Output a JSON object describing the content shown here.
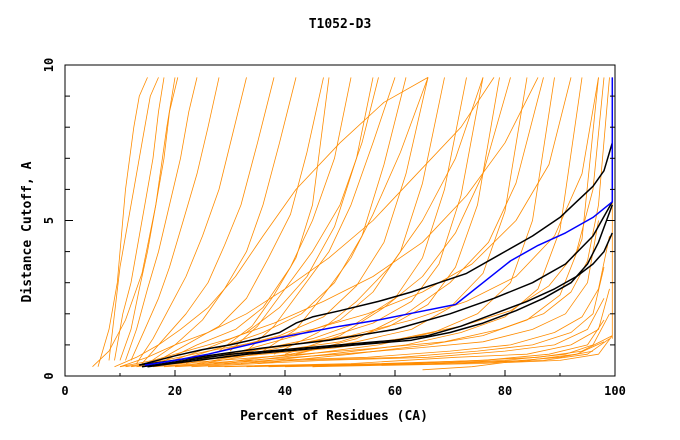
{
  "chart_data": {
    "type": "line",
    "title": "T1052-D3",
    "xlabel": "Percent of Residues (CA)",
    "ylabel": "Distance Cutoff, A",
    "xlim": [
      0,
      100
    ],
    "ylim": [
      0,
      10
    ],
    "x_ticks": [
      0,
      20,
      40,
      60,
      80,
      100
    ],
    "y_ticks": [
      0,
      5,
      10
    ],
    "grid": false,
    "legend": "none",
    "colors": {
      "orange": "#ff8c00",
      "black": "#000000",
      "blue": "#0000ff"
    },
    "series": [
      {
        "color": "orange",
        "x": [
          6,
          8,
          9.5,
          10,
          11,
          12.5,
          13.5,
          15
        ],
        "y": [
          0.3,
          1.5,
          3.0,
          4.0,
          6.0,
          8.0,
          9.0,
          9.6
        ]
      },
      {
        "color": "orange",
        "x": [
          8,
          9,
          10,
          11,
          12.5,
          14,
          15.5,
          17
        ],
        "y": [
          0.5,
          2.0,
          3.5,
          4.5,
          6.0,
          7.5,
          9.0,
          9.6
        ]
      },
      {
        "color": "orange",
        "x": [
          9,
          10.5,
          12,
          13,
          14.5,
          16,
          17,
          18
        ],
        "y": [
          0.5,
          2.0,
          3.0,
          4.0,
          5.5,
          7.0,
          8.5,
          9.6
        ]
      },
      {
        "color": "orange",
        "x": [
          10,
          12,
          13.5,
          15,
          16.5,
          18,
          19,
          20.5
        ],
        "y": [
          0.5,
          1.5,
          2.8,
          4.0,
          5.5,
          7.0,
          8.5,
          9.6
        ]
      },
      {
        "color": "orange",
        "x": [
          11,
          13,
          15,
          17,
          19,
          21,
          22.5,
          24
        ],
        "y": [
          0.5,
          1.5,
          2.8,
          4.0,
          5.5,
          7.0,
          8.5,
          9.6
        ]
      },
      {
        "color": "orange",
        "x": [
          12,
          14.5,
          17,
          19,
          21.5,
          24,
          26,
          28
        ],
        "y": [
          0.5,
          1.5,
          2.5,
          3.5,
          5.0,
          6.5,
          8.0,
          9.6
        ]
      },
      {
        "color": "orange",
        "x": [
          13,
          16,
          19,
          22,
          25,
          28,
          30.5,
          33
        ],
        "y": [
          0.4,
          1.2,
          2.2,
          3.2,
          4.5,
          6.0,
          7.8,
          9.6
        ]
      },
      {
        "color": "orange",
        "x": [
          14,
          18,
          22,
          26,
          29,
          32,
          35,
          38
        ],
        "y": [
          0.4,
          1.2,
          2.0,
          3.0,
          4.2,
          5.5,
          7.5,
          9.6
        ]
      },
      {
        "color": "orange",
        "x": [
          15,
          20,
          25,
          29,
          33,
          36,
          39,
          42
        ],
        "y": [
          0.4,
          1.0,
          1.8,
          2.8,
          4.0,
          5.5,
          7.5,
          9.6
        ]
      },
      {
        "color": "orange",
        "x": [
          16,
          22,
          28,
          33,
          37,
          41,
          44,
          47
        ],
        "y": [
          0.4,
          1.0,
          1.6,
          2.5,
          3.8,
          5.2,
          7.2,
          9.6
        ]
      },
      {
        "color": "orange",
        "x": [
          17,
          24,
          31,
          36,
          41,
          45,
          49,
          52
        ],
        "y": [
          0.4,
          1.0,
          1.5,
          2.2,
          3.5,
          5.0,
          7.0,
          9.6
        ]
      },
      {
        "color": "orange",
        "x": [
          18,
          26,
          33,
          39,
          44,
          49,
          53,
          56
        ],
        "y": [
          0.4,
          0.9,
          1.4,
          2.2,
          3.2,
          4.8,
          7.0,
          9.6
        ]
      },
      {
        "color": "orange",
        "x": [
          19,
          28,
          36,
          43,
          49,
          54,
          58,
          62
        ],
        "y": [
          0.4,
          0.9,
          1.4,
          2.0,
          3.0,
          4.5,
          6.8,
          9.6
        ]
      },
      {
        "color": "orange",
        "x": [
          20,
          30,
          39,
          47,
          53,
          58,
          62,
          66
        ],
        "y": [
          0.4,
          0.9,
          1.3,
          1.9,
          2.9,
          4.3,
          6.5,
          9.6
        ]
      },
      {
        "color": "orange",
        "x": [
          21,
          32,
          42,
          50,
          56,
          61,
          65,
          69
        ],
        "y": [
          0.4,
          0.8,
          1.3,
          1.8,
          2.7,
          4.0,
          6.2,
          9.6
        ]
      },
      {
        "color": "orange",
        "x": [
          22,
          34,
          45,
          53,
          60,
          65,
          69,
          73
        ],
        "y": [
          0.4,
          0.8,
          1.2,
          1.7,
          2.5,
          3.8,
          6.0,
          9.6
        ]
      },
      {
        "color": "orange",
        "x": [
          24,
          36,
          47,
          56,
          63,
          68,
          72,
          76
        ],
        "y": [
          0.4,
          0.8,
          1.2,
          1.7,
          2.4,
          3.6,
          5.8,
          9.6
        ]
      },
      {
        "color": "orange",
        "x": [
          25,
          38,
          50,
          59,
          66,
          71,
          75,
          79
        ],
        "y": [
          0.4,
          0.8,
          1.1,
          1.6,
          2.3,
          3.5,
          5.5,
          9.6
        ]
      },
      {
        "color": "orange",
        "x": [
          27,
          41,
          53,
          63,
          70,
          76,
          80,
          84
        ],
        "y": [
          0.4,
          0.7,
          1.1,
          1.5,
          2.2,
          3.3,
          5.3,
          9.6
        ]
      },
      {
        "color": "orange",
        "x": [
          29,
          44,
          57,
          67,
          75,
          81,
          85,
          89
        ],
        "y": [
          0.4,
          0.7,
          1.0,
          1.4,
          2.0,
          3.0,
          5.0,
          9.6
        ]
      },
      {
        "color": "orange",
        "x": [
          32,
          48,
          62,
          72,
          80,
          86,
          90,
          94
        ],
        "y": [
          0.4,
          0.7,
          1.0,
          1.4,
          1.9,
          2.8,
          4.7,
          9.6
        ]
      },
      {
        "color": "orange",
        "x": [
          35,
          52,
          66,
          76,
          84,
          90,
          94,
          97
        ],
        "y": [
          0.4,
          0.7,
          1.0,
          1.3,
          1.8,
          2.6,
          4.4,
          9.6
        ]
      },
      {
        "color": "orange",
        "x": [
          5,
          8,
          11,
          14,
          16.5,
          18.5,
          20
        ],
        "y": [
          0.3,
          0.8,
          1.8,
          3.3,
          5.5,
          8.0,
          9.6
        ]
      },
      {
        "color": "orange",
        "x": [
          9,
          13,
          17,
          21,
          26,
          31,
          36,
          42,
          50,
          58,
          66
        ],
        "y": [
          0.3,
          0.6,
          1.0,
          1.5,
          2.2,
          3.2,
          4.5,
          6.0,
          7.5,
          8.8,
          9.6
        ]
      },
      {
        "color": "orange",
        "x": [
          10,
          15,
          20,
          26,
          33,
          40,
          48,
          56,
          64,
          72,
          78
        ],
        "y": [
          0.3,
          0.6,
          1.0,
          1.4,
          2.0,
          2.8,
          3.8,
          5.0,
          6.5,
          8.0,
          9.6
        ]
      },
      {
        "color": "orange",
        "x": [
          10,
          16,
          22,
          30,
          38,
          47,
          56,
          65,
          73,
          80,
          86
        ],
        "y": [
          0.3,
          0.5,
          0.8,
          1.2,
          1.7,
          2.4,
          3.2,
          4.3,
          5.8,
          7.5,
          9.6
        ]
      },
      {
        "color": "orange",
        "x": [
          11,
          18,
          26,
          35,
          45,
          55,
          65,
          74,
          82,
          88,
          92
        ],
        "y": [
          0.3,
          0.5,
          0.8,
          1.1,
          1.5,
          2.0,
          2.7,
          3.6,
          5.0,
          6.8,
          9.6
        ]
      },
      {
        "color": "orange",
        "x": [
          12,
          20,
          30,
          41,
          52,
          63,
          73,
          82,
          89,
          94,
          97
        ],
        "y": [
          0.3,
          0.5,
          0.7,
          1.0,
          1.3,
          1.8,
          2.4,
          3.2,
          4.5,
          6.5,
          9.6
        ]
      },
      {
        "color": "orange",
        "x": [
          13,
          24,
          36,
          49,
          61,
          72,
          81,
          88,
          93,
          96,
          98
        ],
        "y": [
          0.3,
          0.5,
          0.7,
          0.9,
          1.2,
          1.6,
          2.1,
          2.9,
          4.0,
          6.0,
          9.6
        ]
      },
      {
        "color": "orange",
        "x": [
          14,
          28,
          43,
          57,
          69,
          79,
          87,
          92,
          95,
          97,
          99
        ],
        "y": [
          0.3,
          0.5,
          0.7,
          0.9,
          1.1,
          1.5,
          2.0,
          2.7,
          3.7,
          5.5,
          9.6
        ]
      },
      {
        "color": "orange",
        "x": [
          16,
          33,
          50,
          64,
          76,
          85,
          91,
          95,
          97
        ],
        "y": [
          0.3,
          0.5,
          0.7,
          0.9,
          1.1,
          1.5,
          2.0,
          3.0,
          5.0
        ]
      },
      {
        "color": "orange",
        "x": [
          18,
          37,
          55,
          70,
          81,
          89,
          94,
          97,
          99
        ],
        "y": [
          0.3,
          0.5,
          0.6,
          0.8,
          1.0,
          1.4,
          1.9,
          2.8,
          4.5
        ]
      },
      {
        "color": "orange",
        "x": [
          20,
          42,
          61,
          75,
          85,
          92,
          96,
          98
        ],
        "y": [
          0.3,
          0.5,
          0.6,
          0.8,
          1.0,
          1.4,
          2.0,
          3.5
        ]
      },
      {
        "color": "orange",
        "x": [
          23,
          47,
          66,
          80,
          89,
          95,
          98
        ],
        "y": [
          0.3,
          0.5,
          0.6,
          0.8,
          1.0,
          1.5,
          2.5
        ]
      },
      {
        "color": "orange",
        "x": [
          26,
          52,
          71,
          84,
          92,
          97,
          99
        ],
        "y": [
          0.3,
          0.4,
          0.6,
          0.7,
          1.0,
          1.5,
          2.8
        ]
      },
      {
        "color": "orange",
        "x": [
          29,
          57,
          76,
          88,
          95,
          98
        ],
        "y": [
          0.3,
          0.4,
          0.5,
          0.7,
          1.0,
          1.8
        ]
      },
      {
        "color": "orange",
        "x": [
          33,
          62,
          80,
          91,
          96,
          99
        ],
        "y": [
          0.3,
          0.4,
          0.5,
          0.7,
          1.0,
          2.0
        ]
      },
      {
        "color": "orange",
        "x": [
          37,
          66,
          84,
          93,
          98
        ],
        "y": [
          0.3,
          0.4,
          0.5,
          0.7,
          1.1
        ]
      },
      {
        "color": "orange",
        "x": [
          40,
          70,
          87,
          95,
          99
        ],
        "y": [
          0.3,
          0.4,
          0.5,
          0.7,
          1.2
        ]
      },
      {
        "color": "orange",
        "x": [
          45,
          75,
          90,
          97,
          99.5
        ],
        "y": [
          0.3,
          0.4,
          0.5,
          0.7,
          1.3
        ]
      },
      {
        "color": "orange",
        "x": [
          45,
          60,
          75,
          86,
          94,
          99.5
        ],
        "y": [
          0.3,
          0.4,
          0.5,
          0.6,
          0.8,
          1.3
        ]
      },
      {
        "color": "orange",
        "x": [
          65,
          74,
          83,
          90,
          96
        ],
        "y": [
          0.2,
          0.3,
          0.5,
          0.6,
          0.8
        ]
      },
      {
        "color": "orange",
        "x": [
          99.5,
          99.5
        ],
        "y": [
          1.2,
          9.6
        ]
      },
      {
        "color": "orange",
        "x": [
          28,
          34,
          38,
          42,
          45,
          48
        ],
        "y": [
          0.8,
          1.6,
          2.6,
          3.8,
          5.5,
          9.6
        ]
      },
      {
        "color": "orange",
        "x": [
          30,
          35,
          40,
          45,
          50,
          54,
          57
        ],
        "y": [
          0.8,
          1.6,
          2.8,
          4.0,
          5.5,
          7.5,
          9.6
        ]
      },
      {
        "color": "orange",
        "x": [
          33,
          38,
          43,
          48,
          52,
          56,
          60
        ],
        "y": [
          0.8,
          1.6,
          2.8,
          4.0,
          5.5,
          7.5,
          9.6
        ]
      },
      {
        "color": "orange",
        "x": [
          36,
          42,
          47,
          52,
          56,
          61,
          66
        ],
        "y": [
          0.8,
          1.5,
          2.6,
          3.8,
          5.2,
          7.2,
          9.6
        ]
      },
      {
        "color": "orange",
        "x": [
          38,
          46,
          53,
          59,
          65,
          71,
          76
        ],
        "y": [
          0.7,
          1.4,
          2.4,
          3.5,
          5.0,
          7.0,
          9.6
        ]
      },
      {
        "color": "orange",
        "x": [
          40,
          50,
          58,
          65,
          71,
          76,
          81
        ],
        "y": [
          0.7,
          1.3,
          2.2,
          3.2,
          4.6,
          6.5,
          9.6
        ]
      },
      {
        "color": "orange",
        "x": [
          42,
          53,
          62,
          70,
          77,
          82,
          87
        ],
        "y": [
          0.7,
          1.2,
          2.0,
          3.0,
          4.3,
          6.2,
          9.6
        ]
      },
      {
        "color": "black",
        "x": [
          13.5,
          20,
          25,
          30,
          35,
          39,
          42,
          45,
          50,
          57,
          63,
          68,
          73,
          79,
          85,
          90,
          93,
          96,
          98,
          99.5
        ],
        "y": [
          0.35,
          0.65,
          0.85,
          1.0,
          1.2,
          1.4,
          1.7,
          1.9,
          2.1,
          2.4,
          2.7,
          3.0,
          3.3,
          3.9,
          4.5,
          5.1,
          5.6,
          6.1,
          6.6,
          7.5
        ]
      },
      {
        "color": "black",
        "x": [
          14,
          22,
          30,
          40,
          50,
          60,
          66,
          72,
          78,
          84,
          89,
          93,
          96,
          98,
          99.5
        ],
        "y": [
          0.3,
          0.5,
          0.7,
          0.85,
          1.0,
          1.15,
          1.3,
          1.6,
          2.0,
          2.4,
          2.8,
          3.2,
          3.6,
          4.0,
          4.6
        ]
      },
      {
        "color": "black",
        "x": [
          15,
          24,
          33,
          43,
          53,
          63,
          70,
          76,
          82,
          87,
          92,
          95,
          97,
          99.5
        ],
        "y": [
          0.3,
          0.5,
          0.7,
          0.85,
          1.0,
          1.15,
          1.4,
          1.7,
          2.1,
          2.5,
          3.0,
          3.6,
          4.3,
          5.5
        ]
      },
      {
        "color": "black",
        "x": [
          13.5,
          24,
          36,
          48,
          60,
          70,
          78,
          85,
          91,
          96,
          99.5
        ],
        "y": [
          0.35,
          0.6,
          0.9,
          1.15,
          1.5,
          2.0,
          2.5,
          3.0,
          3.6,
          4.5,
          5.6
        ]
      },
      {
        "color": "blue",
        "x": [
          14.5,
          20,
          26,
          32,
          38,
          44,
          50,
          57,
          64,
          71,
          76,
          81,
          86,
          91,
          96,
          99.5,
          99.5
        ],
        "y": [
          0.35,
          0.5,
          0.7,
          0.95,
          1.2,
          1.4,
          1.6,
          1.8,
          2.05,
          2.3,
          3.0,
          3.7,
          4.2,
          4.6,
          5.1,
          5.6,
          9.6
        ]
      }
    ]
  }
}
